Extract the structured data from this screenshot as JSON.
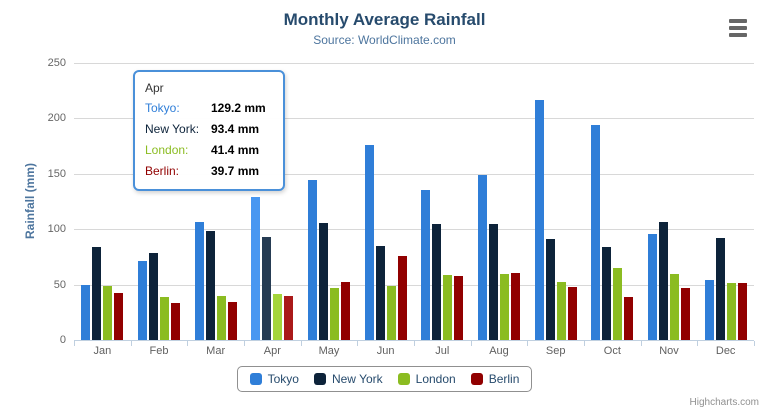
{
  "header": {
    "title": "Monthly Average Rainfall",
    "subtitle": "Source: WorldClimate.com"
  },
  "chart_data": {
    "type": "bar",
    "title": "Monthly Average Rainfall",
    "subtitle": "Source: WorldClimate.com",
    "xlabel": "",
    "ylabel": "Rainfall (mm)",
    "ylim": [
      0,
      250
    ],
    "yticks": [
      0,
      50,
      100,
      150,
      200,
      250
    ],
    "grid": true,
    "legend_position": "bottom",
    "categories": [
      "Jan",
      "Feb",
      "Mar",
      "Apr",
      "May",
      "Jun",
      "Jul",
      "Aug",
      "Sep",
      "Oct",
      "Nov",
      "Dec"
    ],
    "series": [
      {
        "name": "Tokyo",
        "color": "#2f7ed8",
        "values": [
          49.9,
          71.5,
          106.4,
          129.2,
          144.0,
          176.0,
          135.6,
          148.5,
          216.4,
          194.1,
          95.6,
          54.4
        ]
      },
      {
        "name": "New York",
        "color": "#0d233a",
        "values": [
          83.6,
          78.8,
          98.5,
          93.4,
          106.0,
          84.5,
          105.0,
          104.3,
          91.2,
          83.5,
          106.6,
          92.3
        ]
      },
      {
        "name": "London",
        "color": "#8bbc21",
        "values": [
          48.9,
          38.8,
          39.3,
          41.4,
          47.0,
          48.3,
          59.0,
          59.6,
          52.4,
          65.2,
          59.3,
          51.2
        ]
      },
      {
        "name": "Berlin",
        "color": "#910000",
        "values": [
          42.4,
          33.2,
          34.5,
          39.7,
          52.6,
          75.5,
          57.4,
          60.4,
          47.6,
          39.1,
          46.8,
          51.1
        ]
      }
    ],
    "hovered_category": "Apr"
  },
  "tooltip": {
    "header": "Apr",
    "border_color": "#4a90d9",
    "rows": [
      {
        "label": "Tokyo:",
        "value": "129.2 mm",
        "color": "#2f7ed8"
      },
      {
        "label": "New York:",
        "value": "93.4 mm",
        "color": "#0d233a"
      },
      {
        "label": "London:",
        "value": "41.4 mm",
        "color": "#8bbc21"
      },
      {
        "label": "Berlin:",
        "value": "39.7 mm",
        "color": "#910000"
      }
    ]
  },
  "legend": {
    "items": [
      {
        "label": "Tokyo",
        "color": "#2f7ed8"
      },
      {
        "label": "New York",
        "color": "#0d233a"
      },
      {
        "label": "London",
        "color": "#8bbc21"
      },
      {
        "label": "Berlin",
        "color": "#910000"
      }
    ]
  },
  "credits": {
    "text": "Highcharts.com"
  },
  "colors": {
    "title": "#274b6d",
    "subtitle": "#4d759e",
    "axis_labels": "#666666",
    "gridline": "#d8d8d8",
    "axis_line": "#c0d0e0",
    "legend_border": "#909090"
  }
}
